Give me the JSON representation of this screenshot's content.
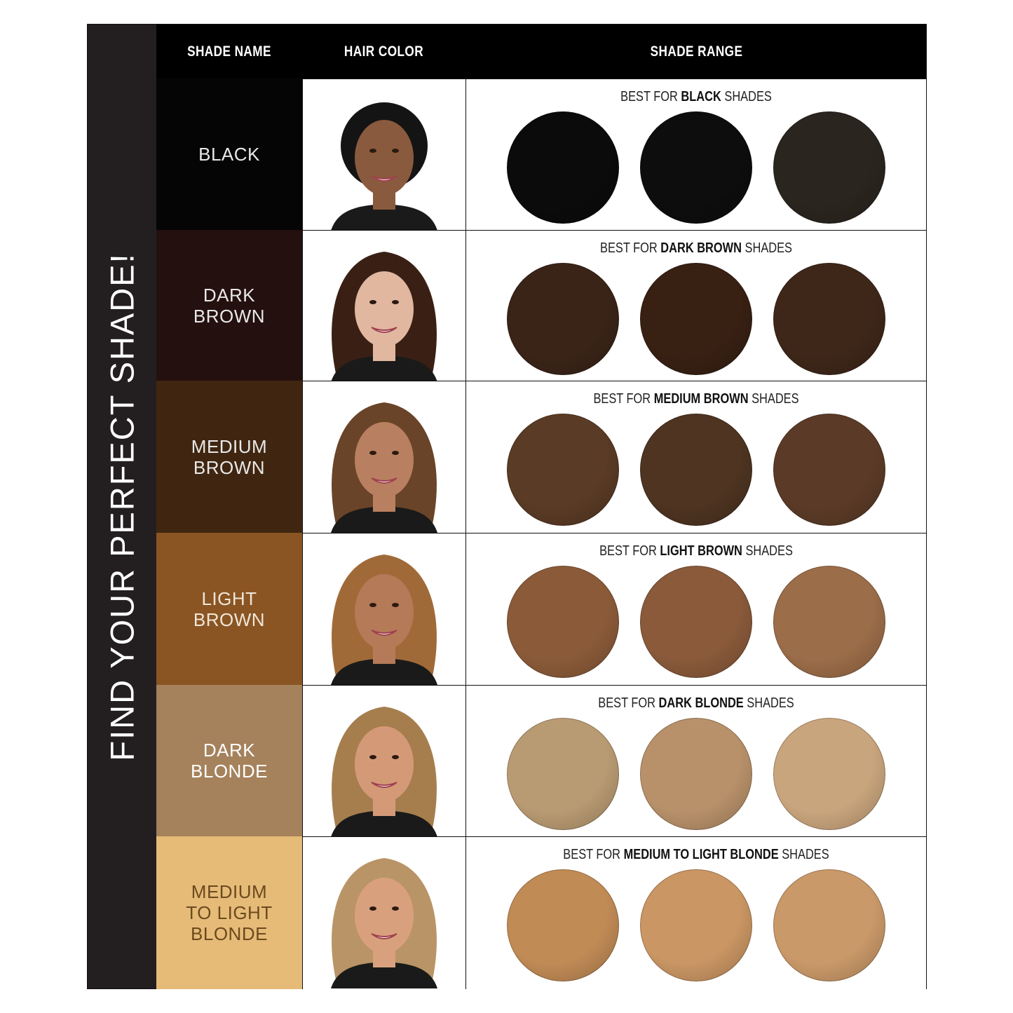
{
  "sidebar": {
    "title": "FIND YOUR PERFECT SHADE!"
  },
  "header": {
    "shade_name": "SHADE NAME",
    "hair_color": "HAIR COLOR",
    "shade_range": "SHADE RANGE"
  },
  "label_prefix": "BEST FOR",
  "label_suffix": "SHADES",
  "rows": [
    {
      "name": "BLACK",
      "best_for": "BLACK",
      "bg": "#050505",
      "text_color": "#e8e8e8",
      "hair": "#141414",
      "skin": "#8a5a3e",
      "swatches": [
        "#0b0b0b",
        "#0d0d0d",
        "#2b251f"
      ]
    },
    {
      "name": "DARK\nBROWN",
      "best_for": "DARK BROWN",
      "bg": "#24100e",
      "text_color": "#e8e8e8",
      "hair": "#3a2014",
      "skin": "#e2b7a0",
      "swatches": [
        "#3a2417",
        "#382013",
        "#3e2719"
      ]
    },
    {
      "name": "MEDIUM\nBROWN",
      "best_for": "MEDIUM BROWN",
      "bg": "#402610",
      "text_color": "#e8e8e8",
      "hair": "#6a4428",
      "skin": "#b88060",
      "swatches": [
        "#5a3b25",
        "#4e3421",
        "#5b3b27"
      ]
    },
    {
      "name": "LIGHT\nBROWN",
      "best_for": "LIGHT BROWN",
      "bg": "#8a5523",
      "text_color": "#f0e6d8",
      "hair": "#a06a38",
      "skin": "#b57a58",
      "swatches": [
        "#8b5b39",
        "#8a5a3b",
        "#9c6d49"
      ]
    },
    {
      "name": "DARK\nBLONDE",
      "best_for": "DARK BLONDE",
      "bg": "#a5825c",
      "text_color": "#ffffff",
      "hair": "#a67e4e",
      "skin": "#d49a78",
      "swatches": [
        "#b99b73",
        "#b8916a",
        "#c9a57d"
      ]
    },
    {
      "name": "MEDIUM\nTO LIGHT\nBLONDE",
      "best_for": "MEDIUM TO LIGHT BLONDE",
      "bg": "#e6bb78",
      "text_color": "#6b4a1e",
      "hair": "#b99466",
      "skin": "#d9a07e",
      "swatches": [
        "#c18b56",
        "#ca9664",
        "#ca9969"
      ]
    }
  ]
}
